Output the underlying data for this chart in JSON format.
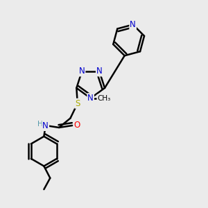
{
  "background_color": "#ebebeb",
  "atom_colors": {
    "C": "#000000",
    "N": "#0000cc",
    "O": "#ff0000",
    "S": "#aaaa00",
    "H": "#5599aa"
  },
  "bond_color": "#000000",
  "bond_width": 1.8,
  "font_size_atom": 8.5,
  "figsize": [
    3.0,
    3.0
  ],
  "dpi": 100
}
